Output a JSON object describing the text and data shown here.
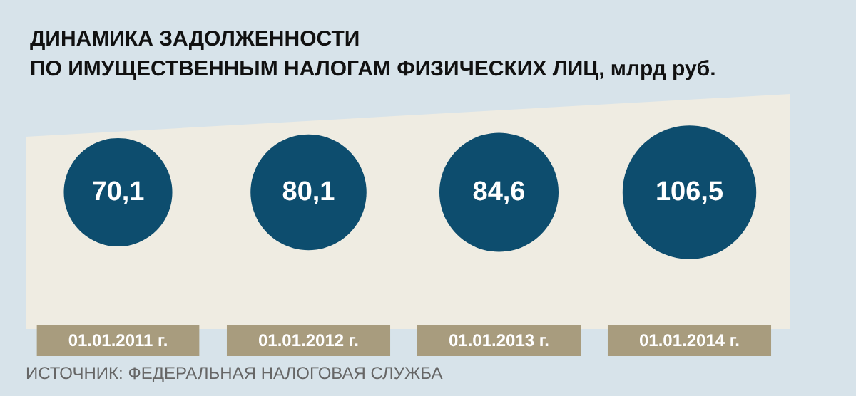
{
  "chart_data": {
    "type": "other",
    "title": "ДИНАМИКА ЗАДОЛЖЕННОСТИ\nПО ИМУЩЕСТВЕННЫМ НАЛОГАМ ФИЗИЧЕСКИХ ЛИЦ, млрд руб.",
    "categories": [
      "01.01.2011 г.",
      "01.01.2012 г.",
      "01.01.2013 г.",
      "01.01.2014 г."
    ],
    "values": [
      70.1,
      80.1,
      84.6,
      106.5
    ],
    "color": "#0d4d6e",
    "value_labels": [
      "70,1",
      "80,1",
      "84,6",
      "106,5"
    ],
    "annotations": [
      "ИСТОЧНИК: ФЕДЕРАЛЬНАЯ НАЛОГОВАЯ СЛУЖБА"
    ]
  }
}
